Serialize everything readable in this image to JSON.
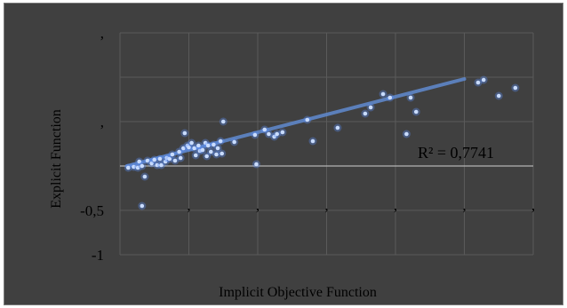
{
  "chart_data": {
    "type": "scatter",
    "title": "",
    "xlabel": "Implicit Objective Function",
    "ylabel": "Explicit Function",
    "xlim": [
      0,
      3
    ],
    "ylim": [
      -1,
      1.5
    ],
    "x_tick_labels": [
      ",",
      ",",
      ",",
      ",",
      ",",
      ","
    ],
    "y_tick_labels": [
      ",",
      ",",
      "-0,5",
      "-1"
    ],
    "grid": true,
    "legend": "none",
    "point_color": "#5b8ff5",
    "trendline_color": "#5f86c8",
    "axis_color": "#b4b4b4",
    "background": "#404040",
    "annotation": "R² = 0,7741",
    "trendline": {
      "x": [
        0.05,
        2.5
      ],
      "y": [
        0.0,
        0.98
      ]
    },
    "points": [
      {
        "x": 0.06,
        "y": -0.02
      },
      {
        "x": 0.1,
        "y": -0.01
      },
      {
        "x": 0.13,
        "y": -0.02
      },
      {
        "x": 0.14,
        "y": 0.05
      },
      {
        "x": 0.16,
        "y": 0.0
      },
      {
        "x": 0.18,
        "y": -0.12
      },
      {
        "x": 0.16,
        "y": -0.45
      },
      {
        "x": 0.2,
        "y": 0.06
      },
      {
        "x": 0.23,
        "y": 0.03
      },
      {
        "x": 0.25,
        "y": 0.07
      },
      {
        "x": 0.27,
        "y": 0.01
      },
      {
        "x": 0.29,
        "y": 0.08
      },
      {
        "x": 0.3,
        "y": 0.01
      },
      {
        "x": 0.33,
        "y": 0.05
      },
      {
        "x": 0.34,
        "y": 0.09
      },
      {
        "x": 0.36,
        "y": 0.08
      },
      {
        "x": 0.38,
        "y": 0.13
      },
      {
        "x": 0.4,
        "y": 0.06
      },
      {
        "x": 0.43,
        "y": 0.16
      },
      {
        "x": 0.44,
        "y": 0.09
      },
      {
        "x": 0.46,
        "y": 0.2
      },
      {
        "x": 0.47,
        "y": 0.37
      },
      {
        "x": 0.49,
        "y": 0.23
      },
      {
        "x": 0.5,
        "y": 0.21
      },
      {
        "x": 0.52,
        "y": 0.26
      },
      {
        "x": 0.54,
        "y": 0.2
      },
      {
        "x": 0.55,
        "y": 0.12
      },
      {
        "x": 0.57,
        "y": 0.23
      },
      {
        "x": 0.58,
        "y": 0.17
      },
      {
        "x": 0.6,
        "y": 0.18
      },
      {
        "x": 0.62,
        "y": 0.26
      },
      {
        "x": 0.63,
        "y": 0.11
      },
      {
        "x": 0.64,
        "y": 0.23
      },
      {
        "x": 0.66,
        "y": 0.16
      },
      {
        "x": 0.68,
        "y": 0.24
      },
      {
        "x": 0.7,
        "y": 0.13
      },
      {
        "x": 0.71,
        "y": 0.2
      },
      {
        "x": 0.73,
        "y": 0.28
      },
      {
        "x": 0.74,
        "y": 0.14
      },
      {
        "x": 0.75,
        "y": 0.5
      },
      {
        "x": 0.83,
        "y": 0.27
      },
      {
        "x": 0.98,
        "y": 0.35
      },
      {
        "x": 0.99,
        "y": 0.02
      },
      {
        "x": 1.05,
        "y": 0.41
      },
      {
        "x": 1.08,
        "y": 0.36
      },
      {
        "x": 1.12,
        "y": 0.33
      },
      {
        "x": 1.14,
        "y": 0.36
      },
      {
        "x": 1.18,
        "y": 0.38
      },
      {
        "x": 1.36,
        "y": 0.52
      },
      {
        "x": 1.4,
        "y": 0.28
      },
      {
        "x": 1.58,
        "y": 0.43
      },
      {
        "x": 1.78,
        "y": 0.59
      },
      {
        "x": 1.82,
        "y": 0.66
      },
      {
        "x": 1.91,
        "y": 0.81
      },
      {
        "x": 1.96,
        "y": 0.77
      },
      {
        "x": 2.08,
        "y": 0.36
      },
      {
        "x": 2.11,
        "y": 0.77
      },
      {
        "x": 2.15,
        "y": 0.61
      },
      {
        "x": 2.6,
        "y": 0.94
      },
      {
        "x": 2.64,
        "y": 0.97
      },
      {
        "x": 2.75,
        "y": 0.79
      },
      {
        "x": 2.87,
        "y": 0.88
      }
    ]
  }
}
